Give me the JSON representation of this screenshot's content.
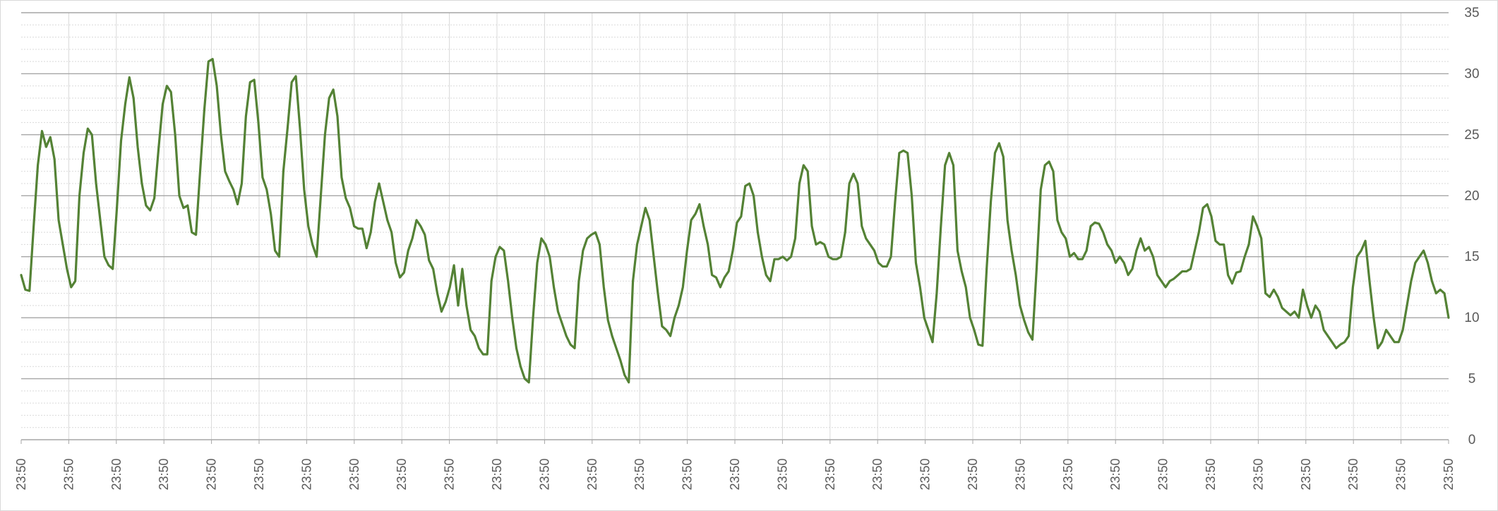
{
  "chart_data": {
    "type": "line",
    "title": "",
    "xlabel": "",
    "ylabel": "",
    "ylim": [
      0,
      35
    ],
    "y_ticks": [
      "0",
      "5",
      "10",
      "15",
      "20",
      "25",
      "30",
      "35"
    ],
    "y_axis_position": "right",
    "x_tick_labels": [
      "23:50",
      "23:50",
      "23:50",
      "23:50",
      "23:50",
      "23:50",
      "23:50",
      "23:50",
      "23:50",
      "23:50",
      "23:50",
      "23:50",
      "23:50",
      "23:50",
      "23:50",
      "23:50",
      "23:50",
      "23:50",
      "23:50",
      "23:50",
      "23:50",
      "23:50",
      "23:50",
      "23:50",
      "23:50",
      "23:50",
      "23:50",
      "23:50",
      "23:50",
      "23:50",
      "23:50"
    ],
    "x_tick_rotation": "vertical",
    "grid": {
      "major": true,
      "minor": true,
      "vertical": true
    },
    "legend": "none",
    "series_color": "#548235",
    "series": [
      {
        "values": [
          13.5,
          12.3,
          12.2,
          17.5,
          22.5,
          25.3,
          24.0,
          24.8,
          23.0,
          18.0,
          16.0,
          14.0,
          12.5,
          13.0,
          20.0,
          23.5,
          25.5,
          25.0,
          21.0,
          18.0,
          15.0,
          14.3,
          14.0,
          19.0,
          24.5,
          27.5,
          29.7,
          28.0,
          24.0,
          21.0,
          19.2,
          18.8,
          19.8,
          23.8,
          27.5,
          29.0,
          28.5,
          25.0,
          20.0,
          19.0,
          19.2,
          17.0,
          16.8,
          22.0,
          27.0,
          31.0,
          31.2,
          29.0,
          25.0,
          22.0,
          21.2,
          20.5,
          19.3,
          21.0,
          26.5,
          29.3,
          29.5,
          26.0,
          21.5,
          20.5,
          18.5,
          15.5,
          15.0,
          22.0,
          25.5,
          29.3,
          29.8,
          25.5,
          20.5,
          17.5,
          16.0,
          15.0,
          20.0,
          25.0,
          28.0,
          28.7,
          26.5,
          21.5,
          19.8,
          19.0,
          17.5,
          17.3,
          17.3,
          15.7,
          17.0,
          19.5,
          21.0,
          19.5,
          18.0,
          17.0,
          14.5,
          13.3,
          13.7,
          15.5,
          16.5,
          18.0,
          17.5,
          16.8,
          14.7,
          14.0,
          12.0,
          10.5,
          11.3,
          12.5,
          14.3,
          11.0,
          14.0,
          11.0,
          9.0,
          8.5,
          7.5,
          7.0,
          7.0,
          13.0,
          15.0,
          15.8,
          15.5,
          13.0,
          10.0,
          7.5,
          6.0,
          5.0,
          4.7,
          10.0,
          14.5,
          16.5,
          16.0,
          15.0,
          12.5,
          10.5,
          9.5,
          8.5,
          7.8,
          7.5,
          13.0,
          15.5,
          16.5,
          16.8,
          17.0,
          16.0,
          12.5,
          9.8,
          8.5,
          7.5,
          6.5,
          5.3,
          4.7,
          13.0,
          16.0,
          17.5,
          19.0,
          18.0,
          15.0,
          12.0,
          9.3,
          9.0,
          8.5,
          10.0,
          11.0,
          12.5,
          15.5,
          18.0,
          18.5,
          19.3,
          17.5,
          16.0,
          13.5,
          13.3,
          12.5,
          13.3,
          13.8,
          15.5,
          17.8,
          18.3,
          20.8,
          21.0,
          20.0,
          17.0,
          15.0,
          13.5,
          13.0,
          14.8,
          14.8,
          15.0,
          14.7,
          15.0,
          16.5,
          21.0,
          22.5,
          22.0,
          17.5,
          16.0,
          16.2,
          16.0,
          15.0,
          14.8,
          14.8,
          15.0,
          17.0,
          21.0,
          21.8,
          21.0,
          17.5,
          16.5,
          16.0,
          15.5,
          14.5,
          14.2,
          14.2,
          15.0,
          19.5,
          23.5,
          23.7,
          23.5,
          20.0,
          14.5,
          12.5,
          10.0,
          9.0,
          8.0,
          12.0,
          17.5,
          22.5,
          23.5,
          22.5,
          15.5,
          13.8,
          12.5,
          10.0,
          9.0,
          7.8,
          7.7,
          14.0,
          19.5,
          23.5,
          24.3,
          23.2,
          18.0,
          15.5,
          13.5,
          11.0,
          9.8,
          8.8,
          8.2,
          14.0,
          20.5,
          22.5,
          22.8,
          22.0,
          18.0,
          17.0,
          16.5,
          15.0,
          15.3,
          14.8,
          14.8,
          15.5,
          17.5,
          17.8,
          17.7,
          17.0,
          16.0,
          15.5,
          14.5,
          15.0,
          14.5,
          13.5,
          14.0,
          15.5,
          16.5,
          15.5,
          15.8,
          15.0,
          13.5,
          13.0,
          12.5,
          13.0,
          13.2,
          13.5,
          13.8,
          13.8,
          14.0,
          15.5,
          17.0,
          19.0,
          19.3,
          18.3,
          16.3,
          16.0,
          16.0,
          13.5,
          12.8,
          13.7,
          13.8,
          15.0,
          16.0,
          18.3,
          17.5,
          16.5,
          12.0,
          11.7,
          12.3,
          11.7,
          10.8,
          10.5,
          10.2,
          10.5,
          10.0,
          12.3,
          11.0,
          10.0,
          11.0,
          10.5,
          9.0,
          8.5,
          8.0,
          7.5,
          7.8,
          8.0,
          8.5,
          12.5,
          15.0,
          15.5,
          16.3,
          13.0,
          10.0,
          7.5,
          8.0,
          9.0,
          8.5,
          8.0,
          8.0,
          9.0,
          11.0,
          13.0,
          14.5,
          15.0,
          15.5,
          14.5,
          13.0,
          12.0,
          12.3,
          12.0,
          10.0
        ],
        "minor_spikes": [
          12.8,
          13.5,
          12.6,
          14.8,
          12.2
        ]
      }
    ]
  }
}
